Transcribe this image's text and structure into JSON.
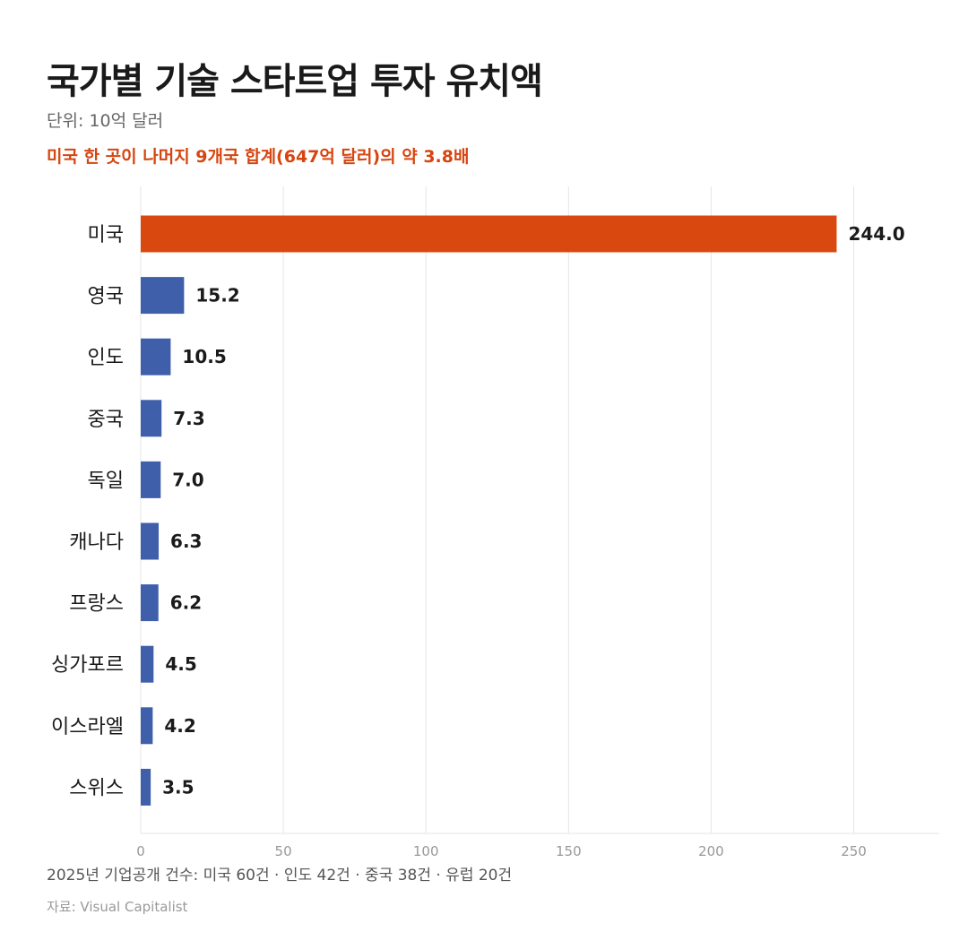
{
  "header": {
    "title": "국가별 기술 스타트업 투자 유치액",
    "subtitle": "단위: 10억 달러",
    "highlight": "미국 한 곳이 나머지 9개국 합계(647억 달러)의 약 3.8배"
  },
  "footer": {
    "note": "2025년 기업공개 건수:  미국 60건 · 인도 42건 · 중국 38건 · 유럽 20건",
    "source": "자료: Visual Capitalist"
  },
  "colors": {
    "highlight_bar": "#d9480f",
    "default_bar": "#3f5faa",
    "grid": "#e6e6e6"
  },
  "chart_data": {
    "type": "bar",
    "orientation": "horizontal",
    "title": "국가별 기술 스타트업 투자 유치액",
    "subtitle": "단위: 10억 달러",
    "categories": [
      "미국",
      "영국",
      "인도",
      "중국",
      "독일",
      "캐나다",
      "프랑스",
      "싱가포르",
      "이스라엘",
      "스위스"
    ],
    "values": [
      244.0,
      15.2,
      10.5,
      7.3,
      7.0,
      6.3,
      6.2,
      4.5,
      4.2,
      3.5
    ],
    "value_labels": [
      "244.0",
      "15.2",
      "10.5",
      "7.3",
      "7.0",
      "6.3",
      "6.2",
      "4.5",
      "4.2",
      "3.5"
    ],
    "highlight_index": 0,
    "xlim": [
      0,
      280
    ],
    "xticks": [
      0,
      50,
      100,
      150,
      200,
      250
    ],
    "xlabel": "",
    "ylabel": "",
    "grid": true,
    "legend": "none"
  }
}
